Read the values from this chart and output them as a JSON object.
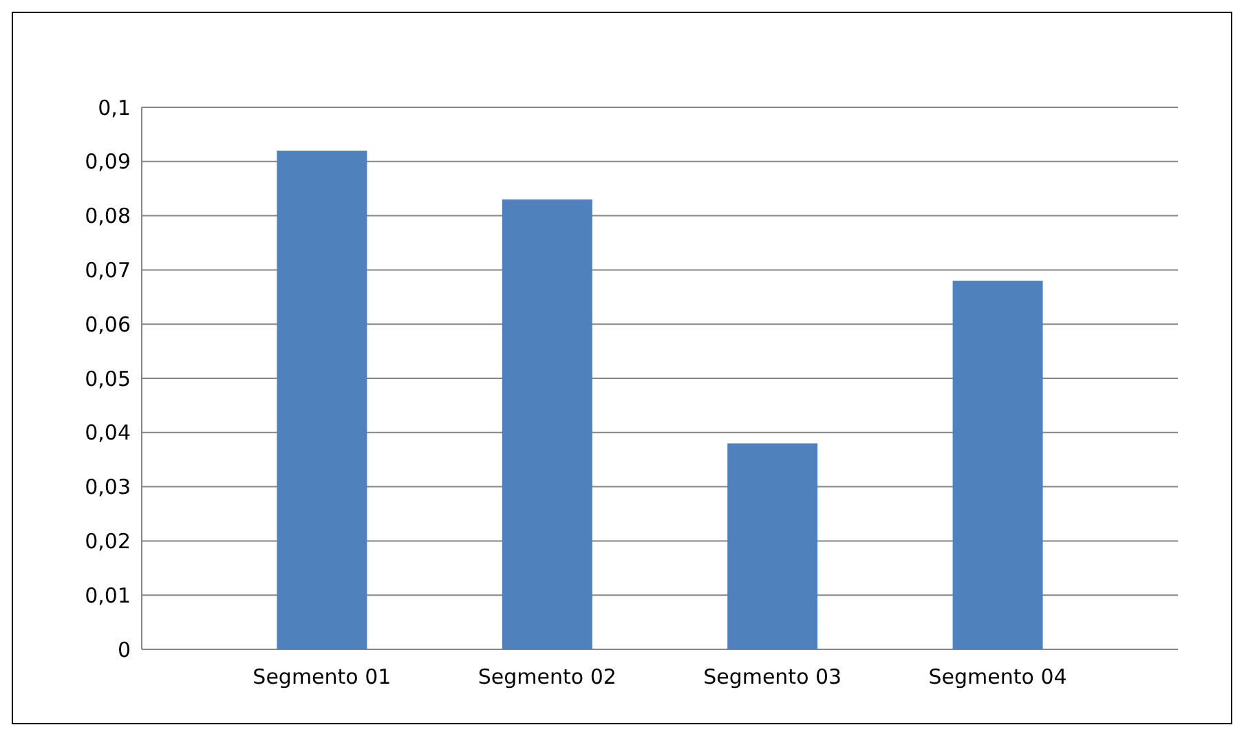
{
  "chart_data": {
    "type": "bar",
    "categories": [
      "Segmento 01",
      "Segmento 02",
      "Segmento 03",
      "Segmento 04"
    ],
    "values": [
      0.092,
      0.083,
      0.038,
      0.068
    ],
    "color": "#4f81bd",
    "ylim": [
      0,
      0.1
    ],
    "yticks": [
      0,
      {
        "value": 0.01,
        "label": "0,01"
      },
      {
        "value": 0.02,
        "label": "0,02"
      },
      {
        "value": 0.03,
        "label": "0,03"
      },
      {
        "value": 0.04,
        "label": "0,04"
      },
      {
        "value": 0.05,
        "label": "0,05"
      },
      {
        "value": 0.06,
        "label": "0,06"
      },
      {
        "value": 0.07,
        "label": "0,07"
      },
      {
        "value": 0.08,
        "label": "0,08"
      },
      {
        "value": 0.09,
        "label": "0,09"
      },
      {
        "value": 0.1,
        "label": "0,1"
      }
    ],
    "grid": true
  }
}
